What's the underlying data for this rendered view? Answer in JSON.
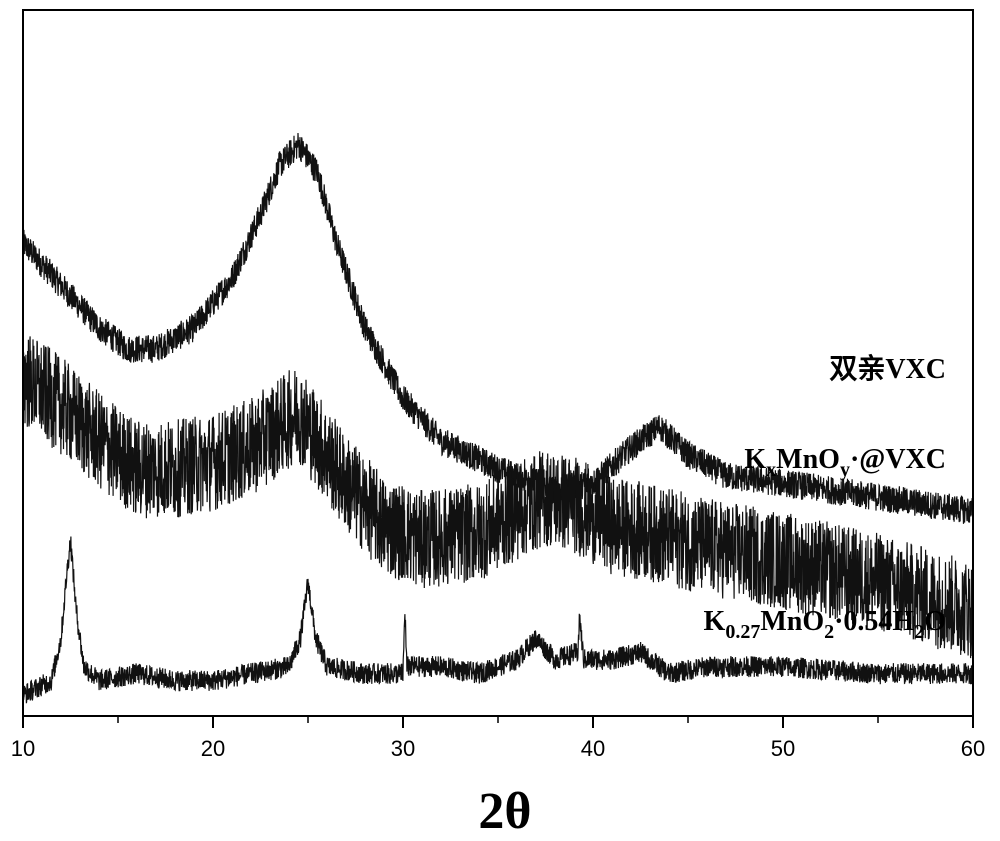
{
  "chart_data": {
    "type": "line",
    "xlabel": "2θ",
    "ylabel": "",
    "xlim": [
      10,
      60
    ],
    "ylim": [
      0,
      100
    ],
    "x_ticks": [
      10,
      20,
      30,
      40,
      50,
      60
    ],
    "y_ticks_shown": false,
    "grid": false,
    "legend": "none",
    "series": [
      {
        "name": "双亲VXC",
        "label_parts": [
          {
            "text": "双亲VXC",
            "sub": false
          }
        ],
        "noise": 4,
        "x": [
          10,
          12,
          14,
          15.5,
          17,
          19,
          21,
          22.5,
          23.5,
          24.5,
          25.5,
          26.5,
          28,
          30,
          32,
          35,
          38,
          40,
          42,
          43.5,
          45,
          47,
          50,
          55,
          60
        ],
        "y": [
          67,
          61,
          55,
          52,
          52,
          55,
          62,
          71,
          78,
          81,
          77,
          67,
          55,
          45,
          39,
          35,
          32,
          33,
          38,
          41,
          37,
          34,
          33,
          31,
          29
        ]
      },
      {
        "name": "KxMnOy·@VXC",
        "label_parts": [
          {
            "text": "K",
            "sub": false
          },
          {
            "text": "x",
            "sub": true
          },
          {
            "text": "MnO",
            "sub": false
          },
          {
            "text": "y",
            "sub": true
          },
          {
            "text": "·@VXC",
            "sub": false
          }
        ],
        "noise": 14,
        "x": [
          10,
          12,
          14,
          16,
          18,
          20,
          22,
          23.5,
          24.5,
          25.5,
          27,
          29,
          31,
          34,
          36,
          37.5,
          39,
          41,
          43,
          46,
          50,
          55,
          60
        ],
        "y": [
          48,
          44,
          39,
          35,
          35,
          36,
          38,
          41,
          43,
          39,
          33,
          27,
          25,
          26,
          29,
          31,
          30,
          27,
          26,
          24,
          22,
          19,
          15
        ]
      },
      {
        "name": "K0.27MnO2·0.54H2O",
        "label_parts": [
          {
            "text": "K",
            "sub": false
          },
          {
            "text": "0.27",
            "sub": true
          },
          {
            "text": "MnO",
            "sub": false
          },
          {
            "text": "2",
            "sub": true
          },
          {
            "text": "·0.54H",
            "sub": false
          },
          {
            "text": "2",
            "sub": true
          },
          {
            "text": "O",
            "sub": false
          }
        ],
        "noise": 3,
        "x": [
          10,
          11.5,
          12.0,
          12.3,
          12.5,
          12.8,
          13.2,
          14,
          16,
          18,
          20,
          22,
          24,
          24.6,
          25.0,
          25.4,
          26,
          28,
          30,
          30.1,
          30.2,
          32,
          34,
          36,
          37,
          38,
          39.2,
          39.3,
          39.5,
          41,
          42.5,
          44,
          46,
          50,
          55,
          60
        ],
        "y": [
          3,
          5,
          11,
          20,
          25,
          15,
          7,
          5,
          6,
          5,
          5,
          6,
          7,
          11,
          19,
          11,
          7,
          6,
          6,
          15,
          7,
          7,
          6,
          8,
          11,
          8,
          9,
          14,
          8,
          8,
          9,
          6,
          7,
          7,
          6,
          6
        ]
      }
    ]
  }
}
